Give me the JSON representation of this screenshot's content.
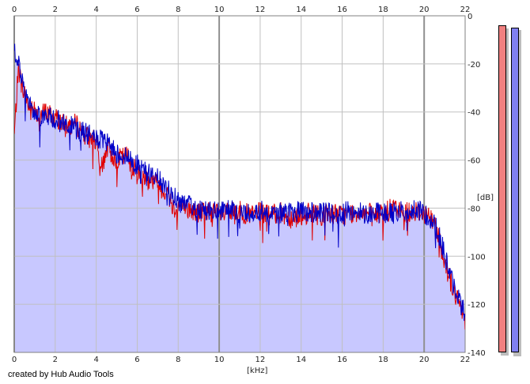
{
  "credit": "created by Hub Audio Tools",
  "meters": {
    "left": {
      "color": "#f08080"
    },
    "right": {
      "color": "#8080f0"
    }
  },
  "chart_data": {
    "type": "line",
    "xlabel": "[kHz]",
    "ylabel": "[dB]",
    "xlim": [
      0,
      22
    ],
    "ylim": [
      -140,
      0
    ],
    "x_ticks": [
      "0",
      "2",
      "4",
      "6",
      "8",
      "10",
      "12",
      "14",
      "16",
      "18",
      "20",
      "22"
    ],
    "y_ticks": [
      "0",
      "-20",
      "-40",
      "-60",
      "-80",
      "-100",
      "-120",
      "-140"
    ],
    "grid": true,
    "fill_color": "#c8c8ff",
    "series": [
      {
        "color": "#e00000",
        "x": [
          0,
          0.2,
          0.4,
          0.6,
          0.8,
          1.0,
          1.2,
          1.5,
          2.0,
          2.5,
          3.0,
          3.5,
          4.0,
          4.2,
          4.5,
          5.0,
          5.5,
          6.0,
          6.5,
          7.0,
          7.5,
          7.8,
          8.0,
          8.5,
          9.0,
          9.5,
          10.0,
          10.5,
          11.0,
          11.5,
          12.0,
          12.5,
          13.0,
          13.5,
          14.0,
          14.5,
          15.0,
          15.5,
          16.0,
          16.5,
          17.0,
          17.5,
          18.0,
          18.5,
          19.0,
          19.5,
          20.0,
          20.3,
          20.6,
          20.9,
          21.2,
          21.5,
          21.8,
          22.0
        ],
        "y": [
          -50,
          -22,
          -30,
          -35,
          -40,
          -38,
          -42,
          -40,
          -42,
          -46,
          -45,
          -50,
          -52,
          -66,
          -55,
          -60,
          -58,
          -66,
          -67,
          -70,
          -74,
          -80,
          -79,
          -81,
          -82,
          -81,
          -83,
          -82,
          -81,
          -83,
          -82,
          -83,
          -82,
          -84,
          -83,
          -82,
          -83,
          -82,
          -83,
          -82,
          -81,
          -83,
          -82,
          -80,
          -82,
          -81,
          -82,
          -84,
          -88,
          -98,
          -108,
          -116,
          -122,
          -126
        ]
      },
      {
        "color": "#0000c8",
        "x": [
          0,
          0.2,
          0.4,
          0.6,
          0.8,
          1.0,
          1.2,
          1.5,
          2.0,
          2.5,
          3.0,
          3.5,
          4.0,
          4.5,
          5.0,
          5.5,
          6.0,
          6.5,
          7.0,
          7.5,
          8.0,
          8.5,
          9.0,
          9.5,
          10.0,
          10.5,
          11.0,
          11.5,
          12.0,
          12.5,
          13.0,
          13.5,
          14.0,
          14.5,
          15.0,
          15.5,
          16.0,
          16.5,
          17.0,
          17.5,
          18.0,
          18.5,
          19.0,
          19.5,
          20.0,
          20.3,
          20.6,
          20.9,
          21.2,
          21.5,
          21.8,
          22.0
        ],
        "y": [
          -14,
          -18,
          -28,
          -34,
          -38,
          -40,
          -41,
          -42,
          -43,
          -45,
          -47,
          -49,
          -51,
          -53,
          -57,
          -59,
          -62,
          -65,
          -68,
          -72,
          -77,
          -79,
          -80,
          -81,
          -82,
          -81,
          -82,
          -82,
          -81,
          -82,
          -82,
          -82,
          -81,
          -82,
          -82,
          -82,
          -82,
          -81,
          -82,
          -82,
          -82,
          -82,
          -81,
          -81,
          -82,
          -84,
          -88,
          -96,
          -106,
          -114,
          -120,
          -124
        ]
      }
    ]
  }
}
